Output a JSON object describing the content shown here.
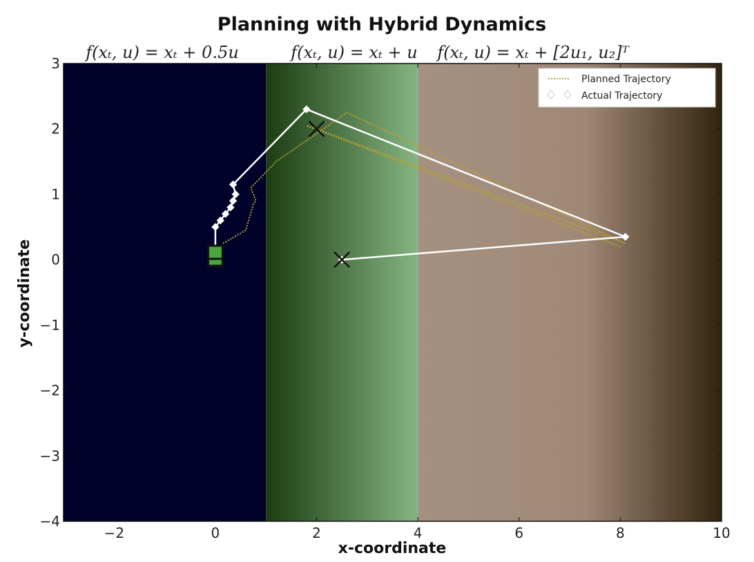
{
  "chart_data": {
    "type": "line",
    "title": "Planning with Hybrid Dynamics",
    "xlabel": "x-coordinate",
    "ylabel": "y-coordinate",
    "xlim": [
      -3,
      10
    ],
    "ylim": [
      -4,
      3
    ],
    "xticks": [
      -2,
      0,
      2,
      4,
      6,
      8,
      10
    ],
    "yticks": [
      -4,
      -3,
      -2,
      -1,
      0,
      1,
      2,
      3
    ],
    "xtick_labels": [
      "−2",
      "0",
      "2",
      "4",
      "6",
      "8",
      "10"
    ],
    "ytick_labels": [
      "−4",
      "−3",
      "−2",
      "−1",
      "0",
      "1",
      "2",
      "3"
    ],
    "regions": [
      {
        "x_start": -3,
        "x_end": 1,
        "color": "#00022a",
        "dynamics": "f(xₜ, u) = xₜ + 0.5u"
      },
      {
        "x_start": 1,
        "x_end": 4,
        "color_start": "#1b3d12",
        "color_end": "#86b482",
        "dynamics": "f(xₜ, u) = xₜ + u"
      },
      {
        "x_start": 4,
        "x_end": 10,
        "color_start": "#a59181",
        "color_end": "#32240f",
        "dynamics": "f(xₜ, u) = xₜ + [2u₁, u₂]ᵀ"
      }
    ],
    "series": [
      {
        "name": "Planned Trajectory",
        "color": "#b9a42c",
        "style": "dotted",
        "x": [
          0.15,
          0.6,
          0.75,
          0.8,
          0.7,
          1.2,
          2.6,
          8.1,
          2.0,
          1.8,
          8.0
        ],
        "y": [
          0.25,
          0.45,
          0.85,
          0.9,
          1.1,
          1.5,
          2.25,
          0.25,
          2.0,
          2.05,
          0.2
        ]
      },
      {
        "name": "Actual Trajectory",
        "color": "#ffffff",
        "style": "solid",
        "marker": "diamond",
        "x": [
          0.0,
          0.0,
          0.1,
          0.2,
          0.3,
          0.35,
          0.4,
          0.35,
          1.8,
          8.1,
          2.5
        ],
        "y": [
          0.0,
          0.5,
          0.6,
          0.7,
          0.8,
          0.9,
          1.0,
          1.15,
          2.3,
          0.35,
          0.0
        ]
      }
    ],
    "start_marker": {
      "x": 0.0,
      "y": 0.05,
      "color": "#4ca43c"
    },
    "goal_markers": [
      {
        "x": 2.0,
        "y": 2.0
      },
      {
        "x": 2.5,
        "y": 0.0
      }
    ],
    "legend": {
      "placement": "top-right",
      "entries": [
        "Planned Trajectory",
        "Actual Trajectory"
      ]
    }
  }
}
